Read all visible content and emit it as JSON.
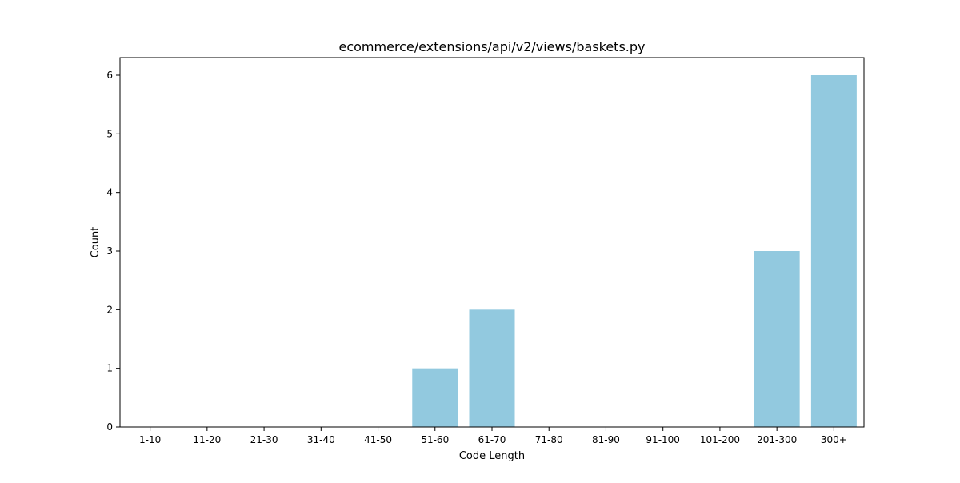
{
  "chart_data": {
    "type": "bar",
    "title": "ecommerce/extensions/api/v2/views/baskets.py",
    "xlabel": "Code Length",
    "ylabel": "Count",
    "categories": [
      "1-10",
      "11-20",
      "21-30",
      "31-40",
      "41-50",
      "51-60",
      "61-70",
      "71-80",
      "81-90",
      "91-100",
      "101-200",
      "201-300",
      "300+"
    ],
    "values": [
      0,
      0,
      0,
      0,
      0,
      1,
      2,
      0,
      0,
      0,
      0,
      3,
      6
    ],
    "ylim": [
      0,
      6.3
    ],
    "yticks": [
      0,
      1,
      2,
      3,
      4,
      5,
      6
    ],
    "grid": false,
    "bar_color": "#92c9df"
  }
}
